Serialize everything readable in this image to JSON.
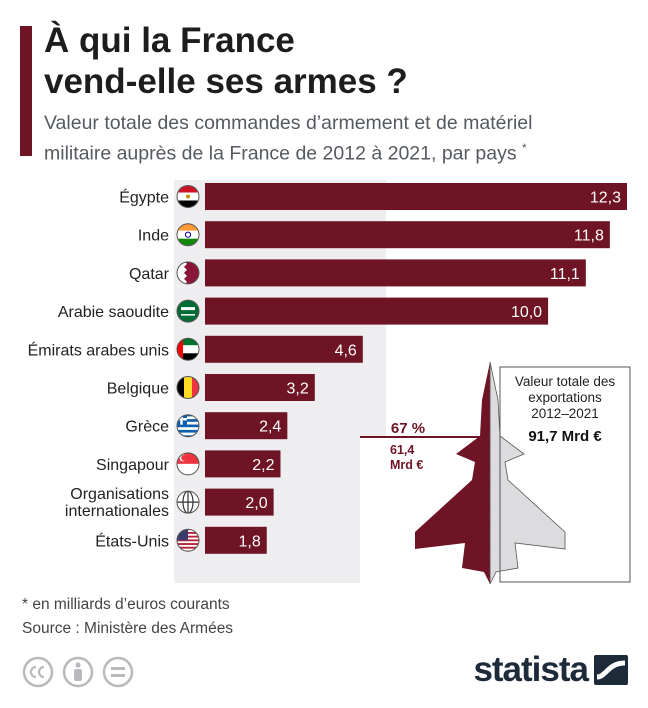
{
  "title_line1": "À qui la France",
  "title_line2": "vend-elle ses armes ?",
  "subtitle_line1": "Valeur totale des commandes d’armement et de matériel",
  "subtitle_line2": "militaire auprès de la France de 2012 à 2021, par pays",
  "subtitle_mark": "*",
  "footnote": "* en milliards d’euros courants",
  "source": "Source : Ministère des Armées",
  "brand": "statista",
  "colors": {
    "bar": "#6e1424",
    "panel": "#eeedef",
    "jet_light": "#dcdcdf"
  },
  "chart_data": {
    "type": "bar",
    "orientation": "horizontal",
    "categories": [
      "Égypte",
      "Inde",
      "Qatar",
      "Arabie saoudite",
      "Émirats arabes unis",
      "Belgique",
      "Grèce",
      "Singapour",
      "Organisations internationales",
      "États-Unis"
    ],
    "category_lines": [
      [
        "Égypte"
      ],
      [
        "Inde"
      ],
      [
        "Qatar"
      ],
      [
        "Arabie saoudite"
      ],
      [
        "Émirats arabes unis"
      ],
      [
        "Belgique"
      ],
      [
        "Grèce"
      ],
      [
        "Singapour"
      ],
      [
        "Organisations",
        "internationales"
      ],
      [
        "États-Unis"
      ]
    ],
    "flags": [
      "egypt-flag-icon",
      "india-flag-icon",
      "qatar-flag-icon",
      "saudi-flag-icon",
      "uae-flag-icon",
      "belgium-flag-icon",
      "greece-flag-icon",
      "singapore-flag-icon",
      "globe-icon",
      "usa-flag-icon"
    ],
    "values": [
      12.3,
      11.8,
      11.1,
      10.0,
      4.6,
      3.2,
      2.4,
      2.2,
      2.0,
      1.8
    ],
    "value_labels": [
      "12,3",
      "11,8",
      "11,1",
      "10,0",
      "4,6",
      "3,2",
      "2,4",
      "2,2",
      "2,0",
      "1,8"
    ],
    "xlim": [
      0,
      12.3
    ],
    "annotation": {
      "share": "67 %",
      "subtotal_line1": "61,4",
      "subtotal_line2": "Mrd €",
      "total_line1": "Valeur totale des",
      "total_line2": "exportations",
      "total_line3": "2012–2021",
      "total_value": "91,7 Mrd €"
    }
  }
}
